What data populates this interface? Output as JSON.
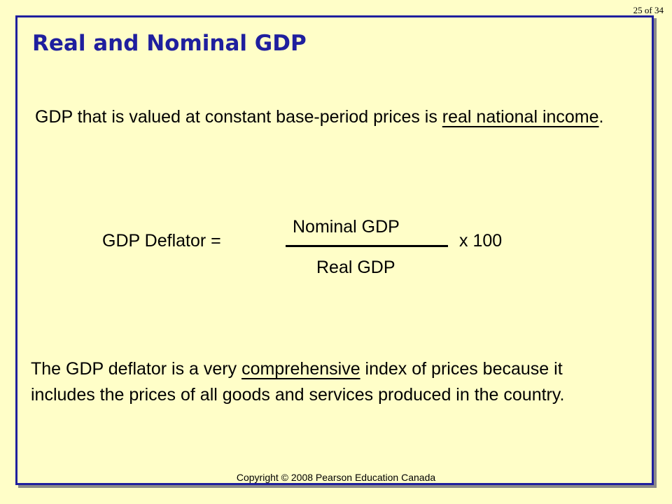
{
  "page_number": "25 of 34",
  "title": "Real and Nominal GDP",
  "definition": {
    "part1": "GDP that is valued at constant base-period prices is ",
    "term": "real national income",
    "part2": "."
  },
  "formula": {
    "label": "GDP Deflator  =",
    "numerator": "Nominal GDP",
    "denominator": "Real GDP",
    "multiplier": "x  100"
  },
  "explanation": {
    "part1": "The GDP deflator is a very ",
    "term": "comprehensive",
    "part2": " index of prices because it includes the prices of all goods and services produced in the country."
  },
  "copyright": "Copyright © 2008 Pearson Education Canada",
  "colors": {
    "background": "#fffec8",
    "title": "#1f1f9e",
    "frame_border": "#1f1f9e",
    "frame_shadow": "#8a8a8a",
    "text": "#000000"
  }
}
